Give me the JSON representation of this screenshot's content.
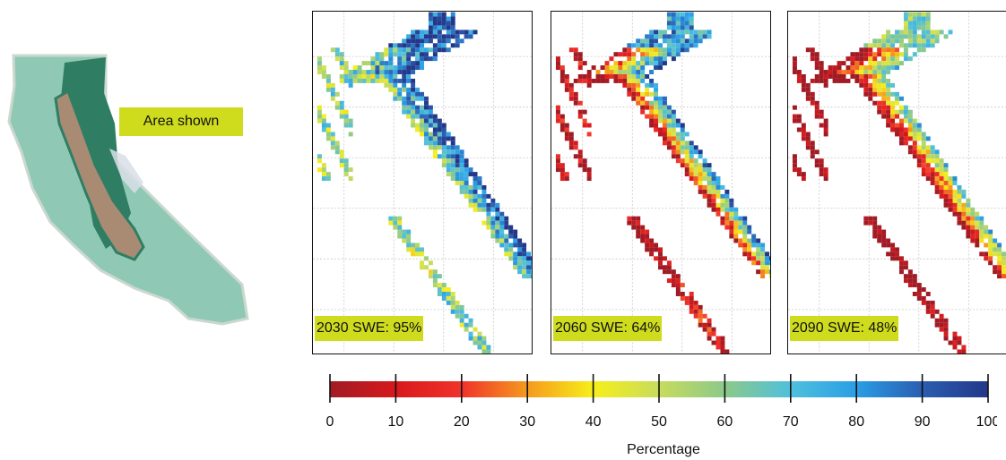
{
  "locator": {
    "label": "Area shown",
    "colors": {
      "land": "#8fc9b5",
      "valley": "#a98b74",
      "forest": "#2f7e63",
      "highlight": "#cfdc1e"
    }
  },
  "panels": [
    {
      "year": "2030",
      "label": "2030 SWE: 95%",
      "value": 95
    },
    {
      "year": "2060",
      "label": "2060 SWE: 64%",
      "value": 64
    },
    {
      "year": "2090",
      "label": "2090 SWE: 48%",
      "value": 48
    }
  ],
  "colorbar": {
    "title": "Percentage",
    "ticks": [
      "0",
      "10",
      "20",
      "30",
      "40",
      "50",
      "60",
      "70",
      "80",
      "90",
      "100"
    ],
    "range": [
      0,
      100
    ],
    "colors": [
      "#a11b25",
      "#d7191c",
      "#f0332a",
      "#f59a1e",
      "#f7ef1a",
      "#c7dc5c",
      "#8cc98a",
      "#4fc0dc",
      "#2a9ee6",
      "#2b5db0",
      "#233889"
    ]
  }
}
